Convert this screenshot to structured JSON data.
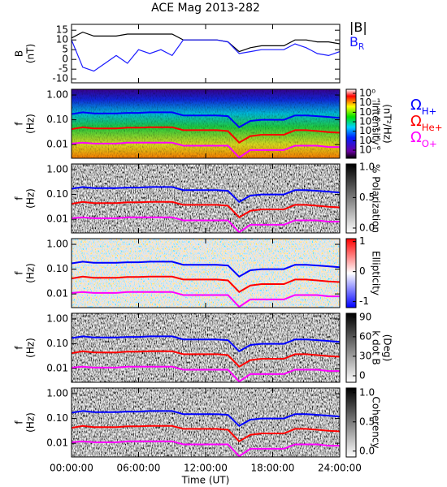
{
  "chart_data": [
    {
      "type": "line",
      "title": "ACE Mag 2013-282",
      "ylabel": [
        "B",
        "(nT)"
      ],
      "xlim": [
        0,
        24
      ],
      "ylim": [
        -12,
        18
      ],
      "yticks": [
        -10,
        -5,
        0,
        5,
        10,
        15
      ],
      "x": [
        0,
        1,
        2,
        3,
        4,
        5,
        6,
        7,
        8,
        9,
        10,
        11,
        12,
        13,
        14,
        15,
        16,
        17,
        18,
        19,
        20,
        21,
        22,
        23,
        24
      ],
      "series": [
        {
          "name": "|B|",
          "color": "#000000",
          "values": [
            11,
            14,
            12,
            12,
            12,
            13,
            13,
            13,
            13,
            13,
            10,
            10,
            10,
            10,
            9,
            4,
            6,
            7,
            7,
            7,
            10,
            10,
            9,
            9,
            8
          ]
        },
        {
          "name": "B",
          "subscript": "R",
          "color": "#1a1aff",
          "values": [
            10,
            -4,
            -6,
            -2,
            2,
            -2,
            5,
            3,
            5,
            2,
            10,
            10,
            10,
            10,
            9,
            3,
            4,
            5,
            5,
            5,
            8,
            6,
            3,
            2,
            4
          ]
        }
      ]
    },
    {
      "type": "spectrogram",
      "ylabel": [
        "f",
        "(Hz)"
      ],
      "log_y": true,
      "xlim": [
        0,
        24
      ],
      "ylim": [
        0.0028,
        1.7
      ],
      "yticks": [
        {
          "value": 0.01,
          "label": "0.01"
        },
        {
          "value": 0.1,
          "label": "0.10"
        },
        {
          "value": 1,
          "label": "1.00"
        }
      ],
      "colorbar": {
        "label": [
          "Intensity",
          "(nT²/Hz)"
        ],
        "log": true,
        "lim": [
          1.4e-07,
          2.7
        ],
        "colormap": "rainbow",
        "ticks": [
          {
            "value": 1,
            "label": "10⁰"
          },
          {
            "value": 0.1,
            "label": "10⁻¹"
          },
          {
            "value": 0.01,
            "label": "10⁻²"
          },
          {
            "value": 0.001,
            "label": "10⁻³"
          },
          {
            "value": 0.0001,
            "label": "10⁻⁴"
          },
          {
            "value": 1e-05,
            "label": "10⁻⁵"
          },
          {
            "value": 1e-06,
            "label": "10⁻⁶"
          }
        ]
      },
      "legend": true,
      "x": [
        0,
        1,
        2,
        3,
        4,
        5,
        6,
        7,
        8,
        9,
        10,
        11,
        12,
        13,
        14,
        15,
        16,
        17,
        18,
        19,
        20,
        21,
        22,
        23,
        24
      ],
      "series": [
        {
          "name": "Ω",
          "subscript": "H+",
          "color": "#0000ff",
          "values": [
            0.17,
            0.2,
            0.18,
            0.18,
            0.18,
            0.19,
            0.19,
            0.2,
            0.2,
            0.2,
            0.15,
            0.15,
            0.15,
            0.15,
            0.14,
            0.05,
            0.09,
            0.1,
            0.1,
            0.1,
            0.15,
            0.15,
            0.14,
            0.13,
            0.12
          ]
        },
        {
          "name": "Ω",
          "subscript": "He+",
          "color": "#ff0000",
          "values": [
            0.042,
            0.05,
            0.045,
            0.045,
            0.045,
            0.048,
            0.048,
            0.05,
            0.05,
            0.05,
            0.038,
            0.038,
            0.038,
            0.038,
            0.035,
            0.012,
            0.022,
            0.025,
            0.025,
            0.025,
            0.038,
            0.038,
            0.035,
            0.032,
            0.03
          ]
        },
        {
          "name": "Ω",
          "subscript": "O+",
          "color": "#ff00ff",
          "values": [
            0.011,
            0.012,
            0.011,
            0.011,
            0.011,
            0.012,
            0.012,
            0.012,
            0.012,
            0.012,
            0.009,
            0.009,
            0.009,
            0.009,
            0.009,
            0.003,
            0.006,
            0.006,
            0.006,
            0.006,
            0.009,
            0.009,
            0.009,
            0.008,
            0.008
          ]
        }
      ]
    },
    {
      "type": "spectrogram",
      "ylabel": [
        "f",
        "(Hz)"
      ],
      "log_y": true,
      "xlim": [
        0,
        24
      ],
      "ylim": [
        0.0028,
        1.7
      ],
      "yticks": [
        {
          "value": 0.01,
          "label": "0.01"
        },
        {
          "value": 0.1,
          "label": "0.10"
        },
        {
          "value": 1,
          "label": "1.00"
        }
      ],
      "colorbar": {
        "label": [
          "% Polarization"
        ],
        "log": false,
        "lim": [
          -0.08,
          1.05
        ],
        "colormap": "gray_r",
        "ticks": [
          {
            "value": 0,
            "label": "0.0"
          },
          0.5,
          {
            "value": 1,
            "label": "1.0"
          }
        ]
      },
      "x": [
        0,
        1,
        2,
        3,
        4,
        5,
        6,
        7,
        8,
        9,
        10,
        11,
        12,
        13,
        14,
        15,
        16,
        17,
        18,
        19,
        20,
        21,
        22,
        23,
        24
      ],
      "series": [
        {
          "color": "#0000ff",
          "values": [
            0.17,
            0.2,
            0.18,
            0.18,
            0.18,
            0.19,
            0.19,
            0.2,
            0.2,
            0.2,
            0.15,
            0.15,
            0.15,
            0.15,
            0.14,
            0.05,
            0.09,
            0.1,
            0.1,
            0.1,
            0.15,
            0.15,
            0.14,
            0.13,
            0.12
          ]
        },
        {
          "color": "#ff0000",
          "values": [
            0.042,
            0.05,
            0.045,
            0.045,
            0.045,
            0.048,
            0.048,
            0.05,
            0.05,
            0.05,
            0.038,
            0.038,
            0.038,
            0.038,
            0.035,
            0.012,
            0.022,
            0.025,
            0.025,
            0.025,
            0.038,
            0.038,
            0.035,
            0.032,
            0.03
          ]
        },
        {
          "color": "#ff00ff",
          "values": [
            0.011,
            0.012,
            0.011,
            0.011,
            0.011,
            0.012,
            0.012,
            0.012,
            0.012,
            0.012,
            0.009,
            0.009,
            0.009,
            0.009,
            0.009,
            0.003,
            0.006,
            0.006,
            0.006,
            0.006,
            0.009,
            0.009,
            0.009,
            0.008,
            0.008
          ]
        }
      ]
    },
    {
      "type": "spectrogram",
      "ylabel": [
        "f",
        "(Hz)"
      ],
      "log_y": true,
      "xlim": [
        0,
        24
      ],
      "ylim": [
        0.0028,
        1.7
      ],
      "yticks": [
        {
          "value": 0.01,
          "label": "0.01"
        },
        {
          "value": 0.1,
          "label": "0.10"
        },
        {
          "value": 1,
          "label": "1.00"
        }
      ],
      "colorbar": {
        "label": [
          "Ellipticity"
        ],
        "log": false,
        "lim": [
          -1.2,
          1.1
        ],
        "colormap": "bwr",
        "ticks": [
          -1,
          0,
          1
        ]
      },
      "x": [
        0,
        1,
        2,
        3,
        4,
        5,
        6,
        7,
        8,
        9,
        10,
        11,
        12,
        13,
        14,
        15,
        16,
        17,
        18,
        19,
        20,
        21,
        22,
        23,
        24
      ],
      "series": [
        {
          "color": "#0000ff",
          "values": [
            0.17,
            0.2,
            0.18,
            0.18,
            0.18,
            0.19,
            0.19,
            0.2,
            0.2,
            0.2,
            0.15,
            0.15,
            0.15,
            0.15,
            0.14,
            0.05,
            0.09,
            0.1,
            0.1,
            0.1,
            0.15,
            0.15,
            0.14,
            0.13,
            0.12
          ]
        },
        {
          "color": "#ff0000",
          "values": [
            0.042,
            0.05,
            0.045,
            0.045,
            0.045,
            0.048,
            0.048,
            0.05,
            0.05,
            0.05,
            0.038,
            0.038,
            0.038,
            0.038,
            0.035,
            0.012,
            0.022,
            0.025,
            0.025,
            0.025,
            0.038,
            0.038,
            0.035,
            0.032,
            0.03
          ]
        },
        {
          "color": "#ff00ff",
          "values": [
            0.011,
            0.012,
            0.011,
            0.011,
            0.011,
            0.012,
            0.012,
            0.012,
            0.012,
            0.012,
            0.009,
            0.009,
            0.009,
            0.009,
            0.009,
            0.003,
            0.006,
            0.006,
            0.006,
            0.006,
            0.009,
            0.009,
            0.009,
            0.008,
            0.008
          ]
        }
      ]
    },
    {
      "type": "spectrogram",
      "ylabel": [
        "f",
        "(Hz)"
      ],
      "log_y": true,
      "xlim": [
        0,
        24
      ],
      "ylim": [
        0.0028,
        1.7
      ],
      "yticks": [
        {
          "value": 0.01,
          "label": "0.01"
        },
        {
          "value": 0.1,
          "label": "0.10"
        },
        {
          "value": 1,
          "label": "1.00"
        }
      ],
      "colorbar": {
        "label": [
          "k dot B",
          "(Deg)"
        ],
        "log": false,
        "lim": [
          -10,
          96
        ],
        "colormap": "gray_r",
        "ticks": [
          0,
          30,
          60,
          90
        ]
      },
      "x": [
        0,
        1,
        2,
        3,
        4,
        5,
        6,
        7,
        8,
        9,
        10,
        11,
        12,
        13,
        14,
        15,
        16,
        17,
        18,
        19,
        20,
        21,
        22,
        23,
        24
      ],
      "series": [
        {
          "color": "#0000ff",
          "values": [
            0.17,
            0.2,
            0.18,
            0.18,
            0.18,
            0.19,
            0.19,
            0.2,
            0.2,
            0.2,
            0.15,
            0.15,
            0.15,
            0.15,
            0.14,
            0.05,
            0.09,
            0.1,
            0.1,
            0.1,
            0.15,
            0.15,
            0.14,
            0.13,
            0.12
          ]
        },
        {
          "color": "#ff0000",
          "values": [
            0.042,
            0.05,
            0.045,
            0.045,
            0.045,
            0.048,
            0.048,
            0.05,
            0.05,
            0.05,
            0.038,
            0.038,
            0.038,
            0.038,
            0.035,
            0.012,
            0.022,
            0.025,
            0.025,
            0.025,
            0.038,
            0.038,
            0.035,
            0.032,
            0.03
          ]
        },
        {
          "color": "#ff00ff",
          "values": [
            0.011,
            0.012,
            0.011,
            0.011,
            0.011,
            0.012,
            0.012,
            0.012,
            0.012,
            0.012,
            0.009,
            0.009,
            0.009,
            0.009,
            0.009,
            0.003,
            0.006,
            0.006,
            0.006,
            0.006,
            0.009,
            0.009,
            0.009,
            0.008,
            0.008
          ]
        }
      ]
    },
    {
      "type": "spectrogram",
      "ylabel": [
        "f",
        "(Hz)"
      ],
      "log_y": true,
      "xlim": [
        0,
        24
      ],
      "ylim": [
        0.0028,
        1.7
      ],
      "yticks": [
        {
          "value": 0.01,
          "label": "0.01"
        },
        {
          "value": 0.1,
          "label": "0.10"
        },
        {
          "value": 1,
          "label": "1.00"
        }
      ],
      "colorbar": {
        "label": [
          "Coherency"
        ],
        "log": false,
        "lim": [
          -0.1,
          1.08
        ],
        "colormap": "gray_r",
        "ticks": [
          {
            "value": 0,
            "label": "0.0"
          },
          0.5,
          {
            "value": 1,
            "label": "1.0"
          }
        ]
      },
      "xlabel": "Time (UT)",
      "xticks": [
        {
          "value": 0,
          "label": "00:00:00"
        },
        {
          "value": 6,
          "label": "06:00:00"
        },
        {
          "value": 12,
          "label": "12:00:00"
        },
        {
          "value": 18,
          "label": "18:00:00"
        },
        {
          "value": 24,
          "label": "24:00:00"
        }
      ],
      "x": [
        0,
        1,
        2,
        3,
        4,
        5,
        6,
        7,
        8,
        9,
        10,
        11,
        12,
        13,
        14,
        15,
        16,
        17,
        18,
        19,
        20,
        21,
        22,
        23,
        24
      ],
      "series": [
        {
          "color": "#0000ff",
          "values": [
            0.17,
            0.2,
            0.18,
            0.18,
            0.18,
            0.19,
            0.19,
            0.2,
            0.2,
            0.2,
            0.15,
            0.15,
            0.15,
            0.15,
            0.14,
            0.05,
            0.09,
            0.1,
            0.1,
            0.1,
            0.15,
            0.15,
            0.14,
            0.13,
            0.12
          ]
        },
        {
          "color": "#ff0000",
          "values": [
            0.042,
            0.05,
            0.045,
            0.045,
            0.045,
            0.048,
            0.048,
            0.05,
            0.05,
            0.05,
            0.038,
            0.038,
            0.038,
            0.038,
            0.035,
            0.012,
            0.022,
            0.025,
            0.025,
            0.025,
            0.038,
            0.038,
            0.035,
            0.032,
            0.03
          ]
        },
        {
          "color": "#ff00ff",
          "values": [
            0.011,
            0.012,
            0.011,
            0.011,
            0.011,
            0.012,
            0.012,
            0.012,
            0.012,
            0.012,
            0.009,
            0.009,
            0.009,
            0.009,
            0.009,
            0.003,
            0.006,
            0.006,
            0.006,
            0.006,
            0.009,
            0.009,
            0.009,
            0.008,
            0.008
          ]
        }
      ]
    }
  ]
}
